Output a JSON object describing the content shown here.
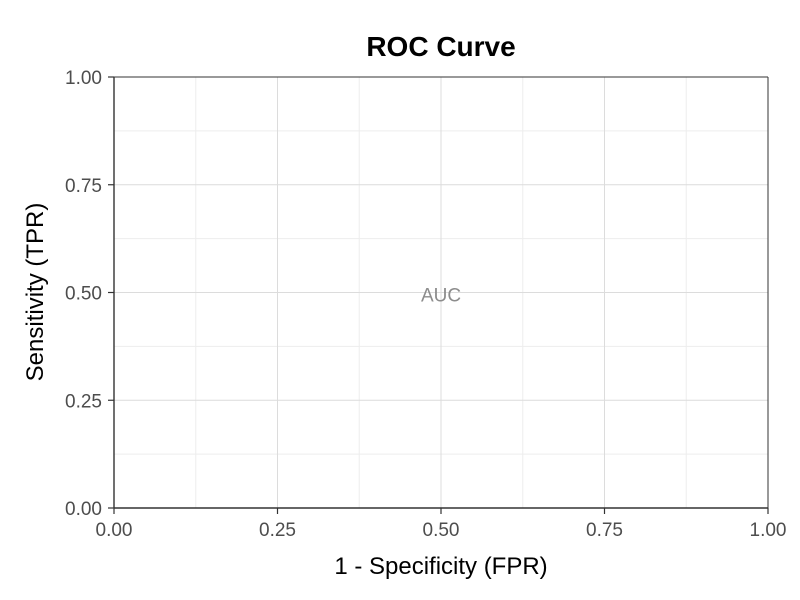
{
  "chart_data": {
    "type": "line",
    "title": "ROC Curve",
    "xlabel": "1 - Specificity (FPR)",
    "ylabel": "Sensitivity (TPR)",
    "xlim": [
      0,
      1
    ],
    "ylim": [
      0,
      1
    ],
    "x_ticks": [
      "0.00",
      "0.25",
      "0.50",
      "0.75",
      "1.00"
    ],
    "y_ticks": [
      "0.00",
      "0.25",
      "0.50",
      "0.75",
      "1.00"
    ],
    "x_tick_values": [
      0,
      0.25,
      0.5,
      0.75,
      1
    ],
    "y_tick_values": [
      0,
      0.25,
      0.5,
      0.75,
      1
    ],
    "minor_grid_values": [
      0.125,
      0.375,
      0.625,
      0.875
    ],
    "grid": true,
    "series": [],
    "annotations": [
      {
        "text": "AUC",
        "x": 0.5,
        "y": 0.5
      }
    ],
    "colors": {
      "annotation": "#8c8c8c",
      "grid": "#dcdcdc",
      "axis": "#333333"
    }
  }
}
